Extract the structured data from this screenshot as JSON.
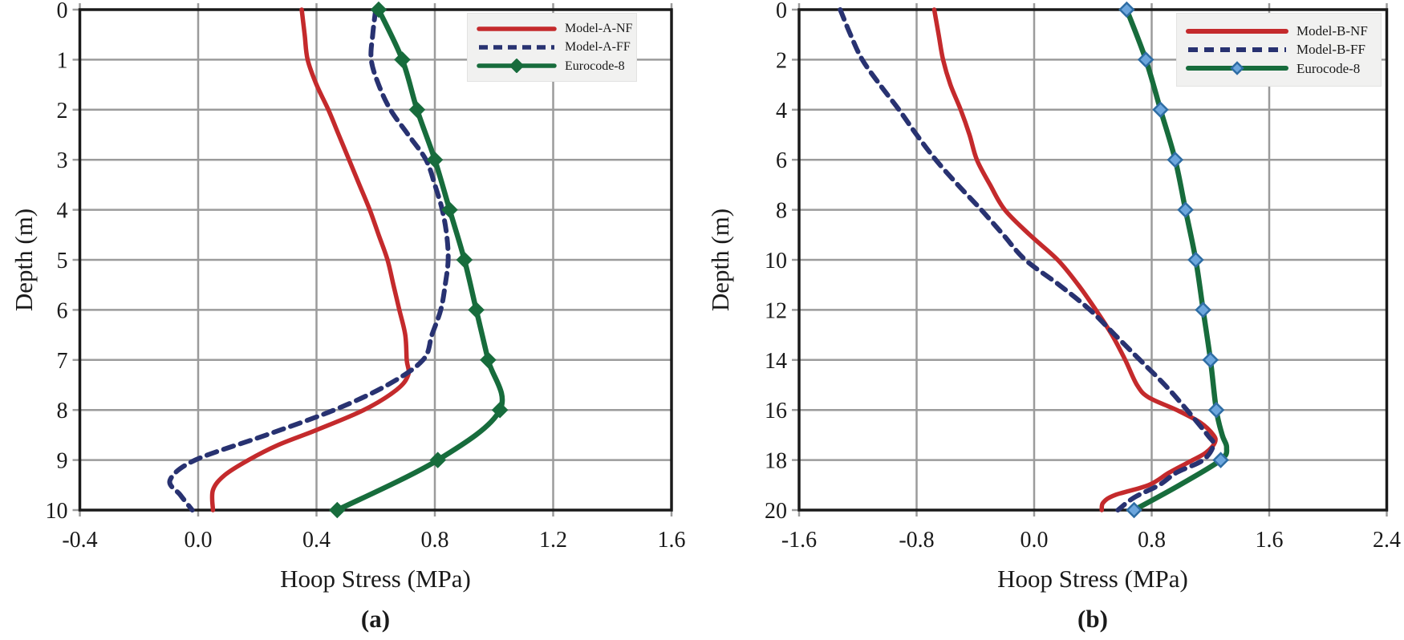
{
  "figure": {
    "background": "#ffffff",
    "grid_color": "#9b9b9b",
    "frame_color": "#1a1a1a",
    "text_color": "#1a1a1a",
    "legend_background": "#f1f1f0"
  },
  "chart_data": [
    {
      "type": "line",
      "caption": "(a)",
      "title": "",
      "xlabel": "Hoop Stress (MPa)",
      "ylabel": "Depth (m)",
      "xlim": [
        -0.4,
        1.6
      ],
      "ylim": [
        0,
        10
      ],
      "y_inverted": true,
      "grid": true,
      "legend_position": "top-right",
      "x_ticks": [
        "-0.4",
        "0.0",
        "0.4",
        "0.8",
        "1.2",
        "1.6"
      ],
      "y_ticks": [
        "0",
        "1",
        "2",
        "3",
        "4",
        "5",
        "6",
        "7",
        "8",
        "9",
        "10"
      ],
      "series": [
        {
          "name": "Model-A-NF",
          "color": "#c42a2c",
          "line_style": "solid",
          "depths": [
            0,
            0.5,
            1,
            1.5,
            2,
            2.5,
            3,
            3.5,
            4,
            4.5,
            5,
            5.5,
            6,
            6.5,
            7,
            7.3,
            7.6,
            8,
            8.4,
            8.7,
            9,
            9.3,
            9.6,
            10
          ],
          "values": [
            0.35,
            0.36,
            0.37,
            0.4,
            0.44,
            0.475,
            0.51,
            0.545,
            0.58,
            0.61,
            0.64,
            0.66,
            0.68,
            0.7,
            0.705,
            0.71,
            0.67,
            0.56,
            0.4,
            0.27,
            0.17,
            0.09,
            0.05,
            0.05
          ]
        },
        {
          "name": "Model-A-FF",
          "color": "#283271",
          "line_style": "dashed",
          "depths": [
            0,
            0.5,
            1,
            1.5,
            2,
            2.5,
            3,
            3.5,
            4,
            4.5,
            5,
            5.5,
            6,
            6.5,
            7,
            7.5,
            8,
            8.5,
            9,
            9.4,
            9.7,
            10
          ],
          "values": [
            0.6,
            0.59,
            0.585,
            0.61,
            0.65,
            0.71,
            0.77,
            0.8,
            0.825,
            0.84,
            0.845,
            0.835,
            0.82,
            0.79,
            0.76,
            0.64,
            0.46,
            0.23,
            -0.01,
            -0.095,
            -0.06,
            -0.02
          ]
        },
        {
          "name": "Eurocode-8",
          "color": "#176c3c",
          "line_style": "solid",
          "depths": [
            0,
            1,
            2,
            3,
            4,
            5,
            6,
            7,
            8,
            9,
            10
          ],
          "values": [
            0.61,
            0.69,
            0.74,
            0.8,
            0.85,
            0.9,
            0.94,
            0.98,
            1.02,
            0.81,
            0.47
          ],
          "marker": {
            "shape": "diamond",
            "fill": "#176c3c",
            "stroke": "#176c3c",
            "depths": [
              0,
              1,
              2,
              3,
              4,
              5,
              6,
              7,
              8,
              9,
              10
            ],
            "values": [
              0.61,
              0.69,
              0.74,
              0.8,
              0.85,
              0.9,
              0.94,
              0.98,
              1.02,
              0.81,
              0.47
            ]
          }
        }
      ]
    },
    {
      "type": "line",
      "caption": "(b)",
      "title": "",
      "xlabel": "Hoop Stress (MPa)",
      "ylabel": "Depth (m)",
      "xlim": [
        -1.6,
        2.4
      ],
      "ylim": [
        0,
        20
      ],
      "y_inverted": true,
      "grid": true,
      "legend_position": "top-right",
      "x_ticks": [
        "-1.6",
        "-0.8",
        "0.0",
        "0.8",
        "1.6",
        "2.4"
      ],
      "y_ticks": [
        "0",
        "2",
        "4",
        "6",
        "8",
        "10",
        "12",
        "14",
        "16",
        "18",
        "20"
      ],
      "series": [
        {
          "name": "Model-B-NF",
          "color": "#c42a2c",
          "line_style": "solid",
          "depths": [
            0,
            1,
            2,
            3,
            4,
            5,
            6,
            7,
            8,
            9,
            10,
            11,
            12,
            13,
            14,
            15,
            15.5,
            16,
            16.5,
            17,
            17.3,
            17.7,
            18,
            18.5,
            19,
            19.4,
            19.7,
            20
          ],
          "values": [
            -0.68,
            -0.65,
            -0.62,
            -0.57,
            -0.5,
            -0.44,
            -0.39,
            -0.3,
            -0.2,
            -0.03,
            0.16,
            0.3,
            0.42,
            0.53,
            0.62,
            0.7,
            0.78,
            0.97,
            1.13,
            1.22,
            1.23,
            1.17,
            1.08,
            0.92,
            0.78,
            0.55,
            0.47,
            0.46
          ]
        },
        {
          "name": "Model-B-FF",
          "color": "#283271",
          "line_style": "dashed",
          "depths": [
            0,
            1,
            2,
            3,
            4,
            5,
            6,
            7,
            8,
            9,
            10,
            11,
            12,
            13,
            14,
            15,
            16,
            17,
            17.4,
            18,
            18.5,
            19,
            19.5,
            20
          ],
          "values": [
            -1.32,
            -1.25,
            -1.17,
            -1.05,
            -0.92,
            -0.8,
            -0.67,
            -0.52,
            -0.36,
            -0.21,
            -0.06,
            0.17,
            0.38,
            0.55,
            0.72,
            0.89,
            1.04,
            1.18,
            1.22,
            1.15,
            0.97,
            0.85,
            0.68,
            0.57
          ]
        },
        {
          "name": "Eurocode-8",
          "color": "#176c3c",
          "line_style": "solid",
          "depths": [
            0,
            2,
            4,
            6,
            8,
            10,
            12,
            14,
            16,
            17,
            17.5,
            18,
            19,
            20
          ],
          "values": [
            0.63,
            0.76,
            0.86,
            0.96,
            1.03,
            1.1,
            1.15,
            1.2,
            1.24,
            1.28,
            1.31,
            1.27,
            0.99,
            0.68
          ],
          "marker": {
            "shape": "diamond",
            "fill": "#6ca6dd",
            "stroke": "#2e6da4",
            "depths": [
              0,
              2,
              4,
              6,
              8,
              10,
              12,
              14,
              16,
              18,
              20
            ],
            "values": [
              0.63,
              0.76,
              0.86,
              0.96,
              1.03,
              1.1,
              1.15,
              1.2,
              1.24,
              1.27,
              0.68
            ]
          }
        }
      ]
    }
  ]
}
